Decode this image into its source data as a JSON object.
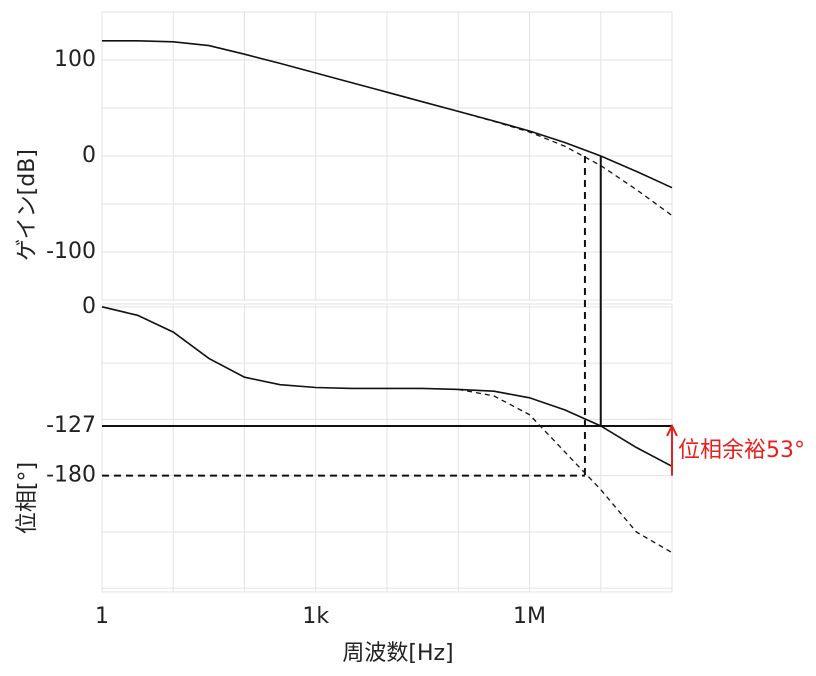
{
  "chart_data": [
    {
      "type": "line",
      "y_label": "ゲイン[dB]",
      "log_x": true,
      "xlim": [
        1,
        100000000
      ],
      "xgrid": [
        1,
        10,
        100,
        1000,
        10000,
        100000,
        1000000,
        10000000,
        100000000
      ],
      "ylim": [
        -150,
        150
      ],
      "yticks": [
        100,
        0,
        -100
      ],
      "ygrid": [
        150,
        100,
        50,
        0,
        -50,
        -100,
        -150
      ],
      "grid": true,
      "series": [
        {
          "color": "#111111",
          "dash": false,
          "x": [
            1,
            3.16,
            10,
            31.6,
            100,
            316,
            1000,
            3160,
            10000,
            31600,
            100000,
            316000,
            1000000,
            3160000,
            10000000,
            31600000,
            100000000
          ],
          "values": [
            120,
            120,
            119,
            115,
            106,
            96.5,
            86.5,
            76.5,
            66.5,
            56.5,
            46.5,
            36.5,
            26,
            14,
            0,
            -16,
            -33
          ]
        },
        {
          "color": "#111111",
          "dash": true,
          "x": [
            100000,
            316000,
            1000000,
            3160000,
            10000000,
            31600000,
            100000000
          ],
          "values": [
            46.5,
            36,
            25,
            10,
            -10,
            -35,
            -62
          ]
        }
      ]
    },
    {
      "type": "line",
      "y_label": "位相[°]",
      "x_label": "周波数[Hz]",
      "log_x": true,
      "xlim": [
        1,
        100000000
      ],
      "xticks": [
        1,
        {
          "value": 1000,
          "label": "1k"
        },
        {
          "value": 1000000,
          "label": "1M"
        }
      ],
      "xgrid": [
        1,
        10,
        100,
        1000,
        10000,
        100000,
        1000000,
        10000000,
        100000000
      ],
      "ylim": [
        -304,
        3
      ],
      "yticks": [
        0,
        -127,
        -180
      ],
      "ygrid": [
        0,
        -60,
        -120,
        -180,
        -240,
        -300
      ],
      "grid": true,
      "series": [
        {
          "color": "#111111",
          "dash": false,
          "x": [
            1,
            3.16,
            10,
            31.6,
            100,
            316,
            1000,
            3160,
            10000,
            31600,
            100000,
            316000,
            1000000,
            3160000,
            10000000,
            31600000,
            100000000
          ],
          "values": [
            0,
            -9,
            -27,
            -55,
            -75,
            -83,
            -86,
            -87,
            -87,
            -87,
            -88,
            -90,
            -97,
            -110,
            -127,
            -150,
            -170
          ]
        },
        {
          "color": "#111111",
          "dash": true,
          "x": [
            100000,
            316000,
            1000000,
            3160000,
            10000000,
            31600000,
            100000000
          ],
          "values": [
            -88,
            -95,
            -115,
            -155,
            -195,
            -240,
            -262
          ]
        }
      ],
      "hlines": [
        {
          "y": -127,
          "x_end": 100000000,
          "dash": false
        },
        {
          "y": -180,
          "x_end": 6000000,
          "dash": true
        }
      ],
      "vlines": [
        {
          "x": 10000000,
          "y_gain": 0,
          "y_phase": -127,
          "dash": false
        },
        {
          "x": 6000000,
          "y_gain": 0,
          "y_phase": -180,
          "dash": true
        }
      ],
      "annotation": {
        "text": "位相余裕53°",
        "x": 100000000,
        "from": -180,
        "to": -127,
        "color": "#e8201c"
      }
    }
  ]
}
